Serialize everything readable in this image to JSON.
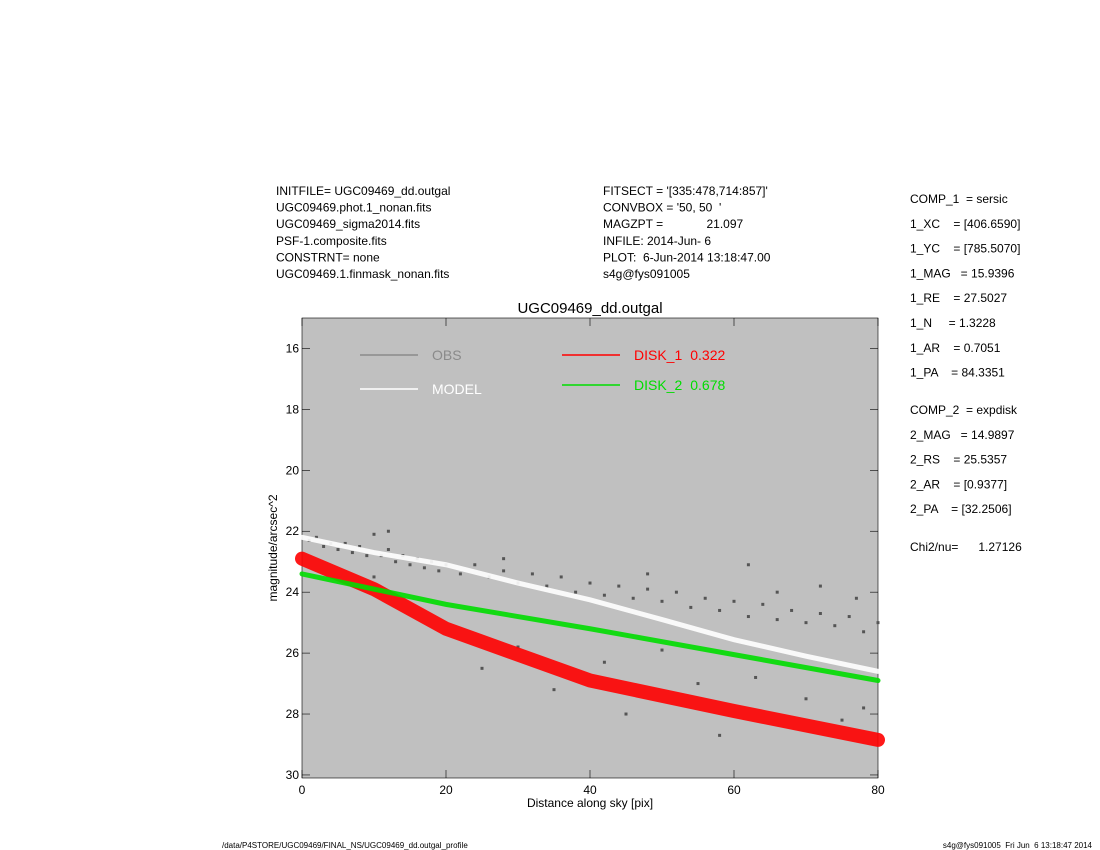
{
  "header": {
    "left": [
      "INITFILE= UGC09469_dd.outgal",
      "UGC09469.phot.1_nonan.fits",
      "UGC09469_sigma2014.fits",
      "PSF-1.composite.fits",
      "CONSTRNT= none",
      "UGC09469.1.finmask_nonan.fits"
    ],
    "middle": [
      "FITSECT = '[335:478,714:857]'",
      "CONVBOX = '50, 50  '",
      "MAGZPT =             21.097",
      "INFILE: 2014-Jun- 6",
      "PLOT:  6-Jun-2014 13:18:47.00",
      "s4g@fys091005"
    ],
    "comp1": [
      "COMP_1  = sersic",
      "1_XC    = [406.6590]",
      "1_YC    = [785.5070]",
      "1_MAG   = 15.9396",
      "1_RE    = 27.5027",
      "1_N     = 1.3228",
      "1_AR    = 0.7051",
      "1_PA    = 84.3351"
    ],
    "comp2": [
      "COMP_2  = expdisk",
      "2_MAG   = 14.9897",
      "2_RS    = 25.5357",
      "2_AR    = [0.9377]",
      "2_PA    = [32.2506]"
    ],
    "chi": "Chi2/nu=      1.27126"
  },
  "footer": {
    "left": "/data/P4STORE/UGC09469/FINAL_NS/UGC09469_dd.outgal_profile",
    "right": "s4g@fys091005  Fri Jun  6 13:18:47 2014"
  },
  "chart_data": {
    "type": "scatter",
    "title": "UGC09469_dd.outgal",
    "xlabel": "Distance along sky [pix]",
    "ylabel": "magnitude/arcsec^2",
    "xlim": [
      0,
      80
    ],
    "xticks": [
      0,
      20,
      40,
      60,
      80
    ],
    "ylim": [
      15,
      30.1
    ],
    "y_reversed": true,
    "yticks": [
      16,
      18,
      20,
      22,
      24,
      26,
      28,
      30
    ],
    "background": "#c0c0c0",
    "series": [
      {
        "name": "OBS",
        "kind": "points",
        "color": "#555555",
        "legend_color": "#8a8a8a",
        "x": [
          1,
          2,
          3,
          4,
          5,
          6,
          7,
          8,
          9,
          10,
          11,
          12,
          13,
          14,
          15,
          16,
          17,
          18,
          19,
          20,
          22,
          24,
          26,
          28,
          30,
          32,
          34,
          36,
          38,
          40,
          42,
          44,
          46,
          48,
          50,
          52,
          54,
          56,
          58,
          60,
          62,
          64,
          66,
          68,
          70,
          72,
          74,
          76,
          78,
          80,
          10,
          25,
          30,
          35,
          42,
          45,
          50,
          55,
          58,
          63,
          70,
          75,
          78,
          12,
          28,
          48,
          62,
          66,
          72,
          77
        ],
        "values": [
          22.3,
          22.2,
          22.5,
          22.4,
          22.6,
          22.4,
          22.7,
          22.5,
          22.8,
          22.1,
          22.8,
          22.6,
          23.0,
          22.8,
          23.1,
          22.9,
          23.2,
          23.0,
          23.3,
          23.1,
          23.4,
          23.1,
          23.5,
          23.3,
          23.7,
          23.4,
          23.8,
          23.5,
          24.0,
          23.7,
          24.1,
          23.8,
          24.2,
          23.9,
          24.3,
          24.0,
          24.5,
          24.2,
          24.6,
          24.3,
          24.8,
          24.4,
          24.9,
          24.6,
          25.0,
          24.7,
          25.1,
          24.8,
          25.3,
          25.0,
          23.5,
          26.5,
          25.8,
          27.2,
          26.3,
          28.0,
          25.9,
          27.0,
          28.7,
          26.8,
          27.5,
          28.2,
          27.8,
          22.0,
          22.9,
          23.4,
          23.1,
          24.0,
          23.8,
          24.2
        ]
      },
      {
        "name": "MODEL",
        "kind": "line",
        "color": "#ffffff",
        "legend_color": "#ffffff",
        "x": [
          0,
          10,
          20,
          30,
          40,
          50,
          60,
          70,
          80
        ],
        "values": [
          22.2,
          22.7,
          23.1,
          23.7,
          24.25,
          24.9,
          25.56,
          26.1,
          26.6
        ]
      },
      {
        "name": "DISK_1",
        "fraction": 0.322,
        "kind": "line",
        "color": "#ff0000",
        "legend_color": "#ff0000",
        "x": [
          0,
          10,
          20,
          40,
          60,
          80
        ],
        "values": [
          22.9,
          23.9,
          25.2,
          26.9,
          27.9,
          28.85
        ]
      },
      {
        "name": "DISK_2",
        "fraction": 0.678,
        "kind": "line",
        "color": "#00dd00",
        "legend_color": "#00dd00",
        "x": [
          0,
          10,
          20,
          40,
          60,
          80
        ],
        "values": [
          23.4,
          23.9,
          24.4,
          25.2,
          26.05,
          26.9
        ]
      }
    ]
  }
}
